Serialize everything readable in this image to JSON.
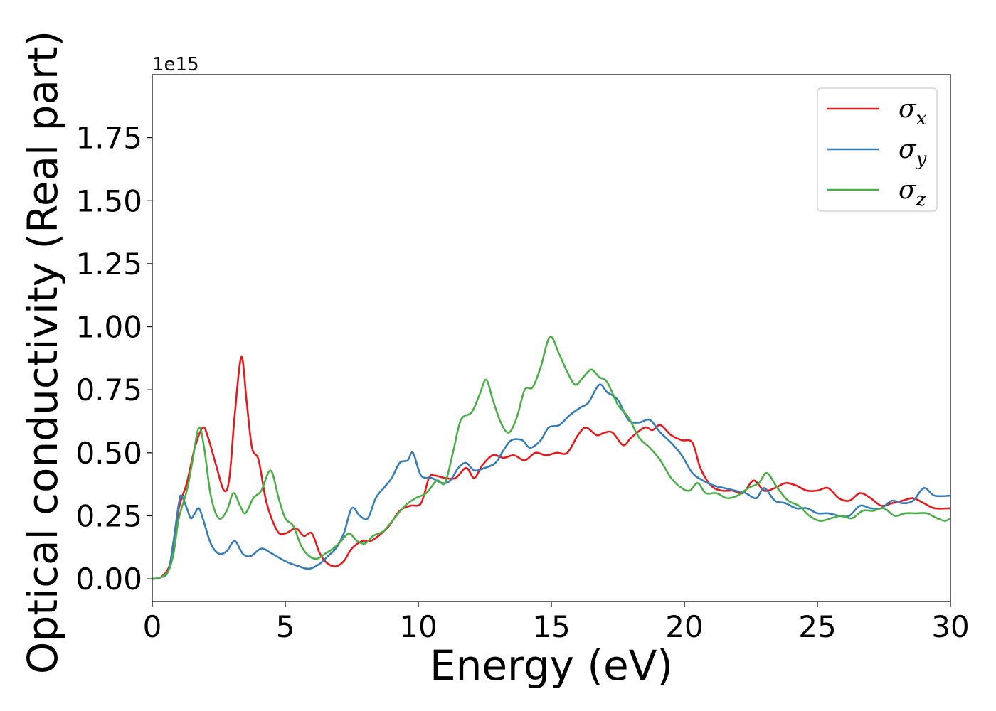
{
  "chart_data": {
    "type": "line",
    "title": "",
    "xlabel": "Energy (eV)",
    "ylabel": "Optical conductivity (Real part)",
    "y_offset_text": "1e15",
    "xlim": [
      0,
      30
    ],
    "ylim": [
      -0.09,
      2.0
    ],
    "x_ticks": [
      0,
      5,
      10,
      15,
      20,
      25,
      30
    ],
    "x_tick_labels": [
      "0",
      "5",
      "10",
      "15",
      "20",
      "25",
      "30"
    ],
    "y_ticks": [
      0,
      0.25,
      0.5,
      0.75,
      1.0,
      1.25,
      1.5,
      1.75
    ],
    "y_tick_labels": [
      "0.00",
      "0.25",
      "0.50",
      "0.75",
      "1.00",
      "1.25",
      "1.50",
      "1.75"
    ],
    "grid": false,
    "legend_position": "top-right",
    "series": [
      {
        "name": "σx",
        "symbol": "σ",
        "subscript": "x",
        "color": "#e41a1c",
        "points": [
          [
            0,
            0
          ],
          [
            0.3,
            0.005
          ],
          [
            0.6,
            0.04
          ],
          [
            0.8,
            0.12
          ],
          [
            1.0,
            0.28
          ],
          [
            1.3,
            0.38
          ],
          [
            1.6,
            0.52
          ],
          [
            1.9,
            0.6
          ],
          [
            2.1,
            0.56
          ],
          [
            2.4,
            0.45
          ],
          [
            2.7,
            0.35
          ],
          [
            2.9,
            0.4
          ],
          [
            3.1,
            0.65
          ],
          [
            3.35,
            0.88
          ],
          [
            3.55,
            0.7
          ],
          [
            3.75,
            0.52
          ],
          [
            4.0,
            0.47
          ],
          [
            4.3,
            0.3
          ],
          [
            4.7,
            0.19
          ],
          [
            5.0,
            0.18
          ],
          [
            5.4,
            0.2
          ],
          [
            5.7,
            0.17
          ],
          [
            6.0,
            0.18
          ],
          [
            6.3,
            0.1
          ],
          [
            6.6,
            0.06
          ],
          [
            6.9,
            0.05
          ],
          [
            7.2,
            0.07
          ],
          [
            7.5,
            0.12
          ],
          [
            7.9,
            0.15
          ],
          [
            8.2,
            0.15
          ],
          [
            8.5,
            0.17
          ],
          [
            8.9,
            0.21
          ],
          [
            9.3,
            0.27
          ],
          [
            9.7,
            0.29
          ],
          [
            10.1,
            0.3
          ],
          [
            10.4,
            0.4
          ],
          [
            10.6,
            0.41
          ],
          [
            11.0,
            0.4
          ],
          [
            11.4,
            0.4
          ],
          [
            11.8,
            0.44
          ],
          [
            12.1,
            0.4
          ],
          [
            12.4,
            0.45
          ],
          [
            12.8,
            0.49
          ],
          [
            13.2,
            0.48
          ],
          [
            13.6,
            0.49
          ],
          [
            14.0,
            0.47
          ],
          [
            14.4,
            0.5
          ],
          [
            14.8,
            0.49
          ],
          [
            15.2,
            0.5
          ],
          [
            15.6,
            0.5
          ],
          [
            16.0,
            0.57
          ],
          [
            16.3,
            0.6
          ],
          [
            16.7,
            0.57
          ],
          [
            17.0,
            0.58
          ],
          [
            17.3,
            0.58
          ],
          [
            17.7,
            0.53
          ],
          [
            18.0,
            0.56
          ],
          [
            18.5,
            0.6
          ],
          [
            18.8,
            0.59
          ],
          [
            19.1,
            0.61
          ],
          [
            19.5,
            0.57
          ],
          [
            19.9,
            0.55
          ],
          [
            20.3,
            0.54
          ],
          [
            20.6,
            0.44
          ],
          [
            21.0,
            0.37
          ],
          [
            21.4,
            0.35
          ],
          [
            21.8,
            0.35
          ],
          [
            22.2,
            0.34
          ],
          [
            22.6,
            0.39
          ],
          [
            23.0,
            0.35
          ],
          [
            23.4,
            0.36
          ],
          [
            23.8,
            0.38
          ],
          [
            24.2,
            0.37
          ],
          [
            24.6,
            0.35
          ],
          [
            25.0,
            0.35
          ],
          [
            25.4,
            0.36
          ],
          [
            25.8,
            0.32
          ],
          [
            26.2,
            0.31
          ],
          [
            26.6,
            0.34
          ],
          [
            27.0,
            0.32
          ],
          [
            27.4,
            0.29
          ],
          [
            27.8,
            0.3
          ],
          [
            28.2,
            0.31
          ],
          [
            28.6,
            0.32
          ],
          [
            29.0,
            0.3
          ],
          [
            29.4,
            0.28
          ],
          [
            30.0,
            0.28
          ]
        ]
      },
      {
        "name": "σy",
        "symbol": "σ",
        "subscript": "y",
        "color": "#377eb8",
        "points": [
          [
            0,
            0
          ],
          [
            0.3,
            0.005
          ],
          [
            0.6,
            0.03
          ],
          [
            0.8,
            0.15
          ],
          [
            1.0,
            0.3
          ],
          [
            1.1,
            0.33
          ],
          [
            1.3,
            0.28
          ],
          [
            1.45,
            0.24
          ],
          [
            1.6,
            0.26
          ],
          [
            1.75,
            0.28
          ],
          [
            1.9,
            0.24
          ],
          [
            2.2,
            0.14
          ],
          [
            2.5,
            0.1
          ],
          [
            2.8,
            0.11
          ],
          [
            3.1,
            0.15
          ],
          [
            3.4,
            0.1
          ],
          [
            3.7,
            0.09
          ],
          [
            4.1,
            0.12
          ],
          [
            4.5,
            0.1
          ],
          [
            5.0,
            0.07
          ],
          [
            5.5,
            0.05
          ],
          [
            5.9,
            0.04
          ],
          [
            6.3,
            0.06
          ],
          [
            6.6,
            0.09
          ],
          [
            6.9,
            0.12
          ],
          [
            7.2,
            0.18
          ],
          [
            7.5,
            0.28
          ],
          [
            7.8,
            0.25
          ],
          [
            8.1,
            0.24
          ],
          [
            8.4,
            0.32
          ],
          [
            8.7,
            0.36
          ],
          [
            9.0,
            0.4
          ],
          [
            9.3,
            0.46
          ],
          [
            9.6,
            0.47
          ],
          [
            9.8,
            0.5
          ],
          [
            10.1,
            0.41
          ],
          [
            10.5,
            0.4
          ],
          [
            10.9,
            0.38
          ],
          [
            11.2,
            0.39
          ],
          [
            11.5,
            0.44
          ],
          [
            11.8,
            0.46
          ],
          [
            12.1,
            0.43
          ],
          [
            12.5,
            0.44
          ],
          [
            12.9,
            0.46
          ],
          [
            13.2,
            0.51
          ],
          [
            13.5,
            0.55
          ],
          [
            13.9,
            0.55
          ],
          [
            14.2,
            0.52
          ],
          [
            14.6,
            0.55
          ],
          [
            14.9,
            0.6
          ],
          [
            15.3,
            0.61
          ],
          [
            15.7,
            0.65
          ],
          [
            16.1,
            0.68
          ],
          [
            16.4,
            0.7
          ],
          [
            16.8,
            0.77
          ],
          [
            17.1,
            0.74
          ],
          [
            17.5,
            0.71
          ],
          [
            17.9,
            0.63
          ],
          [
            18.3,
            0.62
          ],
          [
            18.7,
            0.63
          ],
          [
            19.1,
            0.58
          ],
          [
            19.5,
            0.54
          ],
          [
            19.9,
            0.49
          ],
          [
            20.3,
            0.42
          ],
          [
            20.7,
            0.39
          ],
          [
            21.1,
            0.37
          ],
          [
            21.5,
            0.36
          ],
          [
            21.9,
            0.35
          ],
          [
            22.3,
            0.34
          ],
          [
            22.7,
            0.32
          ],
          [
            23.0,
            0.36
          ],
          [
            23.4,
            0.31
          ],
          [
            23.8,
            0.3
          ],
          [
            24.2,
            0.28
          ],
          [
            24.6,
            0.28
          ],
          [
            25.0,
            0.26
          ],
          [
            25.4,
            0.26
          ],
          [
            25.8,
            0.25
          ],
          [
            26.2,
            0.25
          ],
          [
            26.6,
            0.29
          ],
          [
            27.0,
            0.28
          ],
          [
            27.4,
            0.28
          ],
          [
            27.8,
            0.31
          ],
          [
            28.2,
            0.3
          ],
          [
            28.6,
            0.31
          ],
          [
            29.0,
            0.36
          ],
          [
            29.4,
            0.33
          ],
          [
            30.0,
            0.33
          ]
        ]
      },
      {
        "name": "σz",
        "symbol": "σ",
        "subscript": "z",
        "color": "#4daf4a",
        "points": [
          [
            0,
            0
          ],
          [
            0.3,
            0.005
          ],
          [
            0.6,
            0.03
          ],
          [
            0.8,
            0.1
          ],
          [
            1.0,
            0.24
          ],
          [
            1.3,
            0.35
          ],
          [
            1.5,
            0.46
          ],
          [
            1.75,
            0.6
          ],
          [
            1.95,
            0.52
          ],
          [
            2.2,
            0.33
          ],
          [
            2.5,
            0.24
          ],
          [
            2.8,
            0.27
          ],
          [
            3.05,
            0.34
          ],
          [
            3.3,
            0.29
          ],
          [
            3.5,
            0.26
          ],
          [
            3.8,
            0.32
          ],
          [
            4.1,
            0.35
          ],
          [
            4.45,
            0.43
          ],
          [
            4.75,
            0.32
          ],
          [
            5.0,
            0.24
          ],
          [
            5.3,
            0.21
          ],
          [
            5.6,
            0.13
          ],
          [
            5.9,
            0.09
          ],
          [
            6.2,
            0.08
          ],
          [
            6.5,
            0.1
          ],
          [
            6.8,
            0.12
          ],
          [
            7.1,
            0.15
          ],
          [
            7.4,
            0.18
          ],
          [
            7.7,
            0.15
          ],
          [
            8.0,
            0.14
          ],
          [
            8.3,
            0.17
          ],
          [
            8.7,
            0.19
          ],
          [
            9.1,
            0.24
          ],
          [
            9.5,
            0.29
          ],
          [
            9.9,
            0.32
          ],
          [
            10.3,
            0.34
          ],
          [
            10.7,
            0.39
          ],
          [
            11.0,
            0.38
          ],
          [
            11.3,
            0.5
          ],
          [
            11.6,
            0.63
          ],
          [
            12.0,
            0.66
          ],
          [
            12.3,
            0.73
          ],
          [
            12.55,
            0.79
          ],
          [
            12.8,
            0.71
          ],
          [
            13.1,
            0.62
          ],
          [
            13.4,
            0.58
          ],
          [
            13.7,
            0.64
          ],
          [
            14.0,
            0.75
          ],
          [
            14.3,
            0.76
          ],
          [
            14.6,
            0.84
          ],
          [
            14.95,
            0.96
          ],
          [
            15.3,
            0.89
          ],
          [
            15.6,
            0.82
          ],
          [
            15.9,
            0.77
          ],
          [
            16.2,
            0.8
          ],
          [
            16.5,
            0.83
          ],
          [
            16.8,
            0.8
          ],
          [
            17.1,
            0.78
          ],
          [
            17.5,
            0.69
          ],
          [
            17.9,
            0.64
          ],
          [
            18.3,
            0.56
          ],
          [
            18.7,
            0.52
          ],
          [
            19.1,
            0.47
          ],
          [
            19.5,
            0.4
          ],
          [
            19.9,
            0.36
          ],
          [
            20.2,
            0.35
          ],
          [
            20.5,
            0.38
          ],
          [
            20.8,
            0.34
          ],
          [
            21.2,
            0.34
          ],
          [
            21.6,
            0.32
          ],
          [
            22.0,
            0.33
          ],
          [
            22.4,
            0.36
          ],
          [
            22.8,
            0.38
          ],
          [
            23.1,
            0.42
          ],
          [
            23.5,
            0.36
          ],
          [
            23.9,
            0.31
          ],
          [
            24.3,
            0.29
          ],
          [
            24.7,
            0.25
          ],
          [
            25.1,
            0.23
          ],
          [
            25.5,
            0.24
          ],
          [
            25.9,
            0.25
          ],
          [
            26.3,
            0.24
          ],
          [
            26.7,
            0.27
          ],
          [
            27.1,
            0.27
          ],
          [
            27.5,
            0.28
          ],
          [
            27.9,
            0.25
          ],
          [
            28.3,
            0.26
          ],
          [
            28.7,
            0.26
          ],
          [
            29.1,
            0.26
          ],
          [
            29.5,
            0.24
          ],
          [
            29.8,
            0.23
          ],
          [
            30.0,
            0.24
          ]
        ]
      }
    ]
  }
}
